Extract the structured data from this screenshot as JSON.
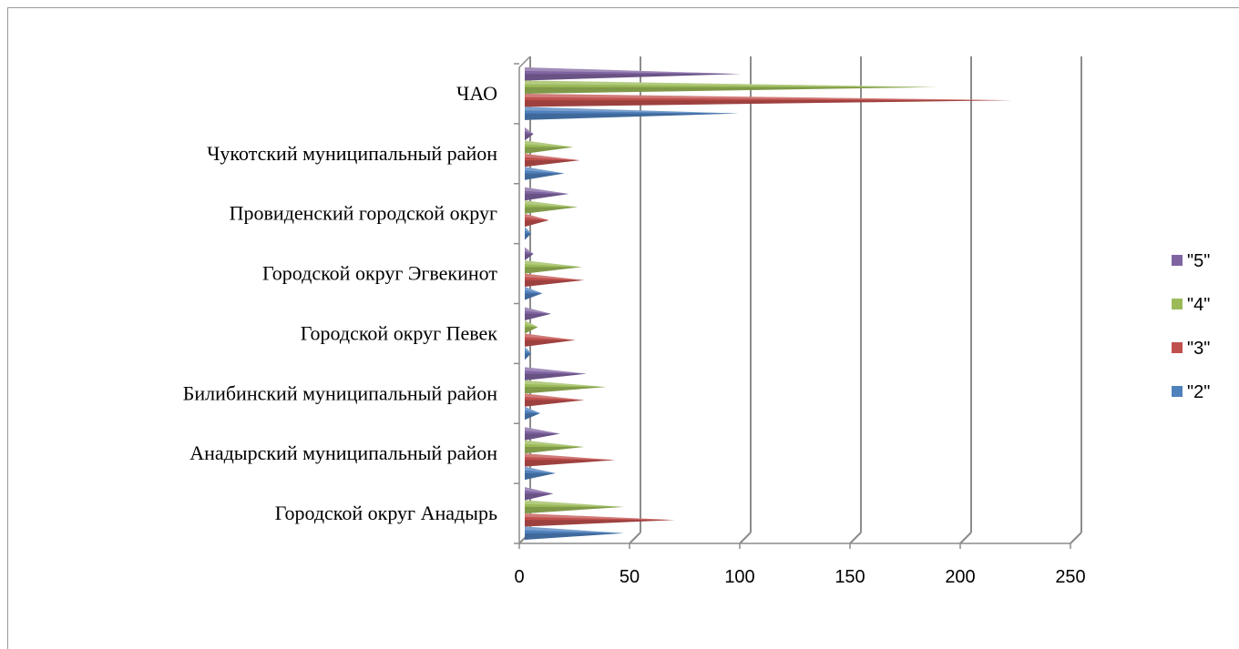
{
  "chart_data": {
    "type": "bar",
    "orientation": "horizontal",
    "style": "3d-cone",
    "title": "",
    "xlabel": "",
    "ylabel": "",
    "xlim": [
      0,
      250
    ],
    "x_ticks": [
      0,
      50,
      100,
      150,
      200,
      250
    ],
    "grid": true,
    "legend_position": "right",
    "categories": [
      "Городской округ Анадырь",
      "Анадырский муниципальный район",
      "Билибинский муниципальный район",
      "Городской округ Певек",
      "Городской округ Эгвекинот",
      "Провиденский городской округ",
      "Чукотский муниципальный район",
      "ЧАО"
    ],
    "series": [
      {
        "name": "\"2\"",
        "color": "#4f81bd",
        "values": [
          45,
          14,
          7,
          3,
          8,
          3,
          18,
          97
        ]
      },
      {
        "name": "\"3\"",
        "color": "#c0504d",
        "values": [
          68,
          41,
          27,
          23,
          27,
          11,
          25,
          221
        ]
      },
      {
        "name": "\"4\"",
        "color": "#9bbb59",
        "values": [
          45,
          27,
          37,
          6,
          26,
          24,
          22,
          187
        ]
      },
      {
        "name": "\"5\"",
        "color": "#8064a2",
        "values": [
          13,
          16,
          28,
          12,
          4,
          20,
          4,
          98
        ]
      }
    ]
  }
}
